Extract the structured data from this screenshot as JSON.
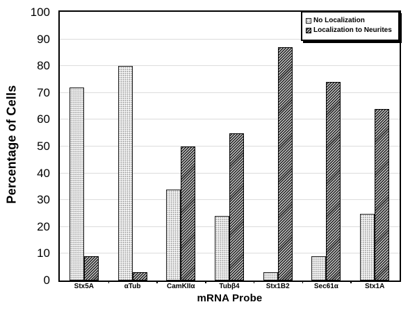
{
  "chart_data": {
    "type": "bar",
    "title": "",
    "xlabel": "mRNA Probe",
    "ylabel": "Percentage of Cells",
    "categories": [
      "Stx5A",
      "αTub",
      "CamKIIα",
      "Tubβ4",
      "Stx1B2",
      "Sec61α",
      "Stx1A"
    ],
    "series": [
      {
        "name": "No Localization",
        "pattern": "stipple-dots",
        "values": [
          72,
          80,
          34,
          24,
          3,
          9,
          25
        ]
      },
      {
        "name": "Localization to Neurites",
        "pattern": "diagonal-hatch",
        "values": [
          9,
          3,
          50,
          55,
          87,
          74,
          64
        ]
      }
    ],
    "ylim": [
      0,
      100
    ],
    "ytick_step": 10,
    "yticks": [
      0,
      10,
      20,
      30,
      40,
      50,
      60,
      70,
      80,
      90,
      100
    ],
    "grid": true,
    "legend_position": "top-right"
  },
  "colors": {
    "background": "#ffffff",
    "axis_border": "#000000",
    "gridline": "#dcdcdc",
    "stipple_dot": "#8f8f8f",
    "hatch_dark": "#2f2f2f",
    "hatch_light": "#e6e6e6",
    "text": "#000000"
  }
}
